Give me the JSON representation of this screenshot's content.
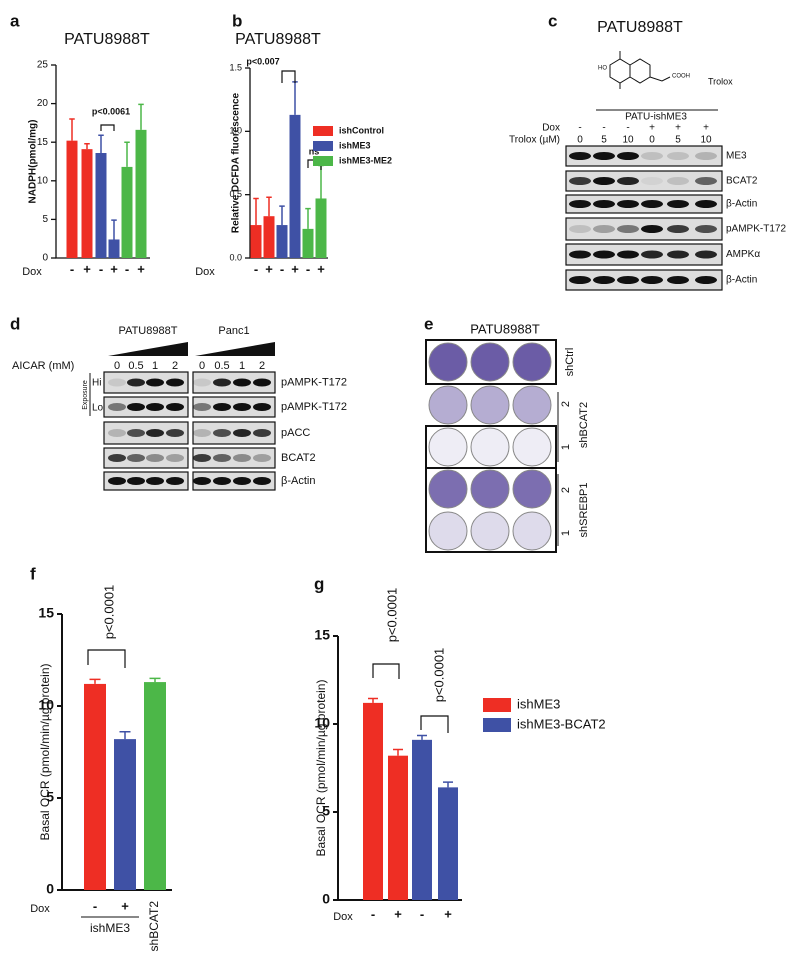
{
  "chart_data": [
    {
      "type": "bar",
      "panel": "a",
      "title": "PATU8988T",
      "y_label": "NADPH(pmol/mg)",
      "x_label": "Dox",
      "categories": [
        "-",
        "+",
        "-",
        "+",
        "-",
        "+"
      ],
      "values": [
        15.2,
        14.1,
        13.6,
        2.4,
        11.8,
        16.6
      ],
      "errors": [
        2.8,
        0.7,
        2.3,
        2.5,
        3.2,
        3.3
      ],
      "colors": [
        "#ee2e24",
        "#ee2e24",
        "#3f51a5",
        "#3f51a5",
        "#4cb748",
        "#4cb748"
      ],
      "ylim": [
        0,
        25
      ],
      "yticks": [
        0,
        5,
        10,
        15,
        20,
        25
      ],
      "annotations": [
        "p<0.0061"
      ]
    },
    {
      "type": "bar",
      "panel": "b",
      "title": "PATU8988T",
      "y_label": "Relative DCFDA fluorescence",
      "x_label": "Dox",
      "categories": [
        "-",
        "+",
        "-",
        "+",
        "-",
        "+"
      ],
      "values": [
        0.26,
        0.33,
        0.26,
        1.13,
        0.23,
        0.47
      ],
      "errors": [
        0.21,
        0.15,
        0.15,
        0.26,
        0.16,
        0.26
      ],
      "colors": [
        "#ee2e24",
        "#ee2e24",
        "#3f51a5",
        "#3f51a5",
        "#4cb748",
        "#4cb748"
      ],
      "legend": [
        {
          "name": "ishControl",
          "color": "#ee2e24"
        },
        {
          "name": "ishME3",
          "color": "#3f51a5"
        },
        {
          "name": "ishME3-ME2",
          "color": "#4cb748"
        }
      ],
      "ylim": [
        0,
        1.5
      ],
      "yticks": [
        {
          "value": 0,
          "label": "0.0"
        },
        {
          "value": 0.5,
          "label": "0.5"
        },
        {
          "value": 1,
          "label": "1.0"
        },
        {
          "value": 1.5,
          "label": "1.5"
        }
      ],
      "annotations": [
        "p<0.007",
        "ns"
      ]
    },
    {
      "type": "bar",
      "panel": "f",
      "y_label": "Basal OCR (pmol/min/µg protein)",
      "x_label": "Dox",
      "group_label": "ishME3",
      "categories": [
        "-",
        "+",
        "shBCAT2"
      ],
      "values": [
        11.2,
        8.2,
        11.3
      ],
      "errors": [
        0.25,
        0.4,
        0.2
      ],
      "colors": [
        "#ee2e24",
        "#3f51a5",
        "#4cb748"
      ],
      "ylim": [
        0,
        15
      ],
      "yticks": [
        0,
        5,
        10,
        15
      ],
      "annotations": [
        "p<0.0001"
      ]
    },
    {
      "type": "bar",
      "panel": "g",
      "y_label": "Basal OCR (pmol/min/µg protein)",
      "x_label": "Dox",
      "categories": [
        "-",
        "+",
        "-",
        "+"
      ],
      "values": [
        11.2,
        8.2,
        9.1,
        6.4
      ],
      "errors": [
        0.25,
        0.35,
        0.25,
        0.3
      ],
      "colors": [
        "#ee2e24",
        "#ee2e24",
        "#3f51a5",
        "#3f51a5"
      ],
      "legend": [
        {
          "name": "ishME3",
          "color": "#ee2e24"
        },
        {
          "name": "ishME3-BCAT2",
          "color": "#3f51a5"
        }
      ],
      "ylim": [
        0,
        15
      ],
      "yticks": [
        0,
        5,
        10,
        15
      ],
      "annotations": [
        "p<0.0001",
        "p<0.0001"
      ]
    }
  ],
  "blots": {
    "c": {
      "panel": "c",
      "title": "PATU8988T",
      "compound": "Trolox",
      "ho": "HO",
      "cooh": "COOH",
      "group": "PATU-ishME3",
      "dox_label": "Dox",
      "dox": [
        "-",
        "-",
        "-",
        "+",
        "+",
        "+"
      ],
      "trolox_label": "Trolox (µM)",
      "trolox": [
        "0",
        "5",
        "10",
        "0",
        "5",
        "10"
      ],
      "rows": [
        "ME3",
        "BCAT2",
        "β-Actin",
        "pAMPK-T172",
        "AMPKα",
        "β-Actin"
      ]
    },
    "d": {
      "panel": "d",
      "cells": [
        "PATU8988T",
        "Panc1"
      ],
      "dose_label": "AICAR (mM)",
      "doses": [
        "0",
        "0.5",
        "1",
        "2"
      ],
      "exposure": "Exposure",
      "hi": "Hi",
      "lo": "Lo",
      "rows": [
        "pAMPK-T172",
        "pAMPK-T172",
        "pACC",
        "BCAT2",
        "β-Actin"
      ]
    },
    "e": {
      "panel": "e",
      "title": "PATU8988T",
      "ctrl": "shCtrl",
      "bcat2": "shBCAT2",
      "srebp1": "shSREBP1",
      "two": "2",
      "one": "1"
    }
  }
}
